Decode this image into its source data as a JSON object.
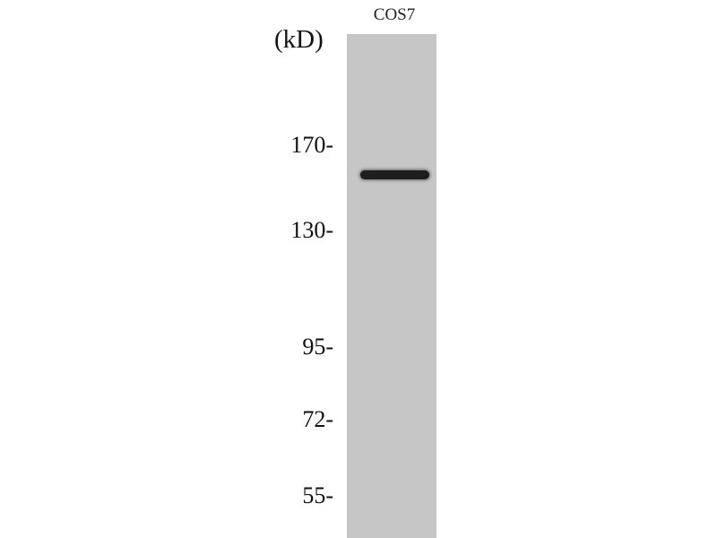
{
  "lane_label": "COS7",
  "unit_label": "(kD)",
  "markers": [
    "170-",
    "130-",
    "95-",
    "72-",
    "55-"
  ],
  "colors": {
    "membrane": "#c6c6c6",
    "band": "#1e1e1e"
  }
}
